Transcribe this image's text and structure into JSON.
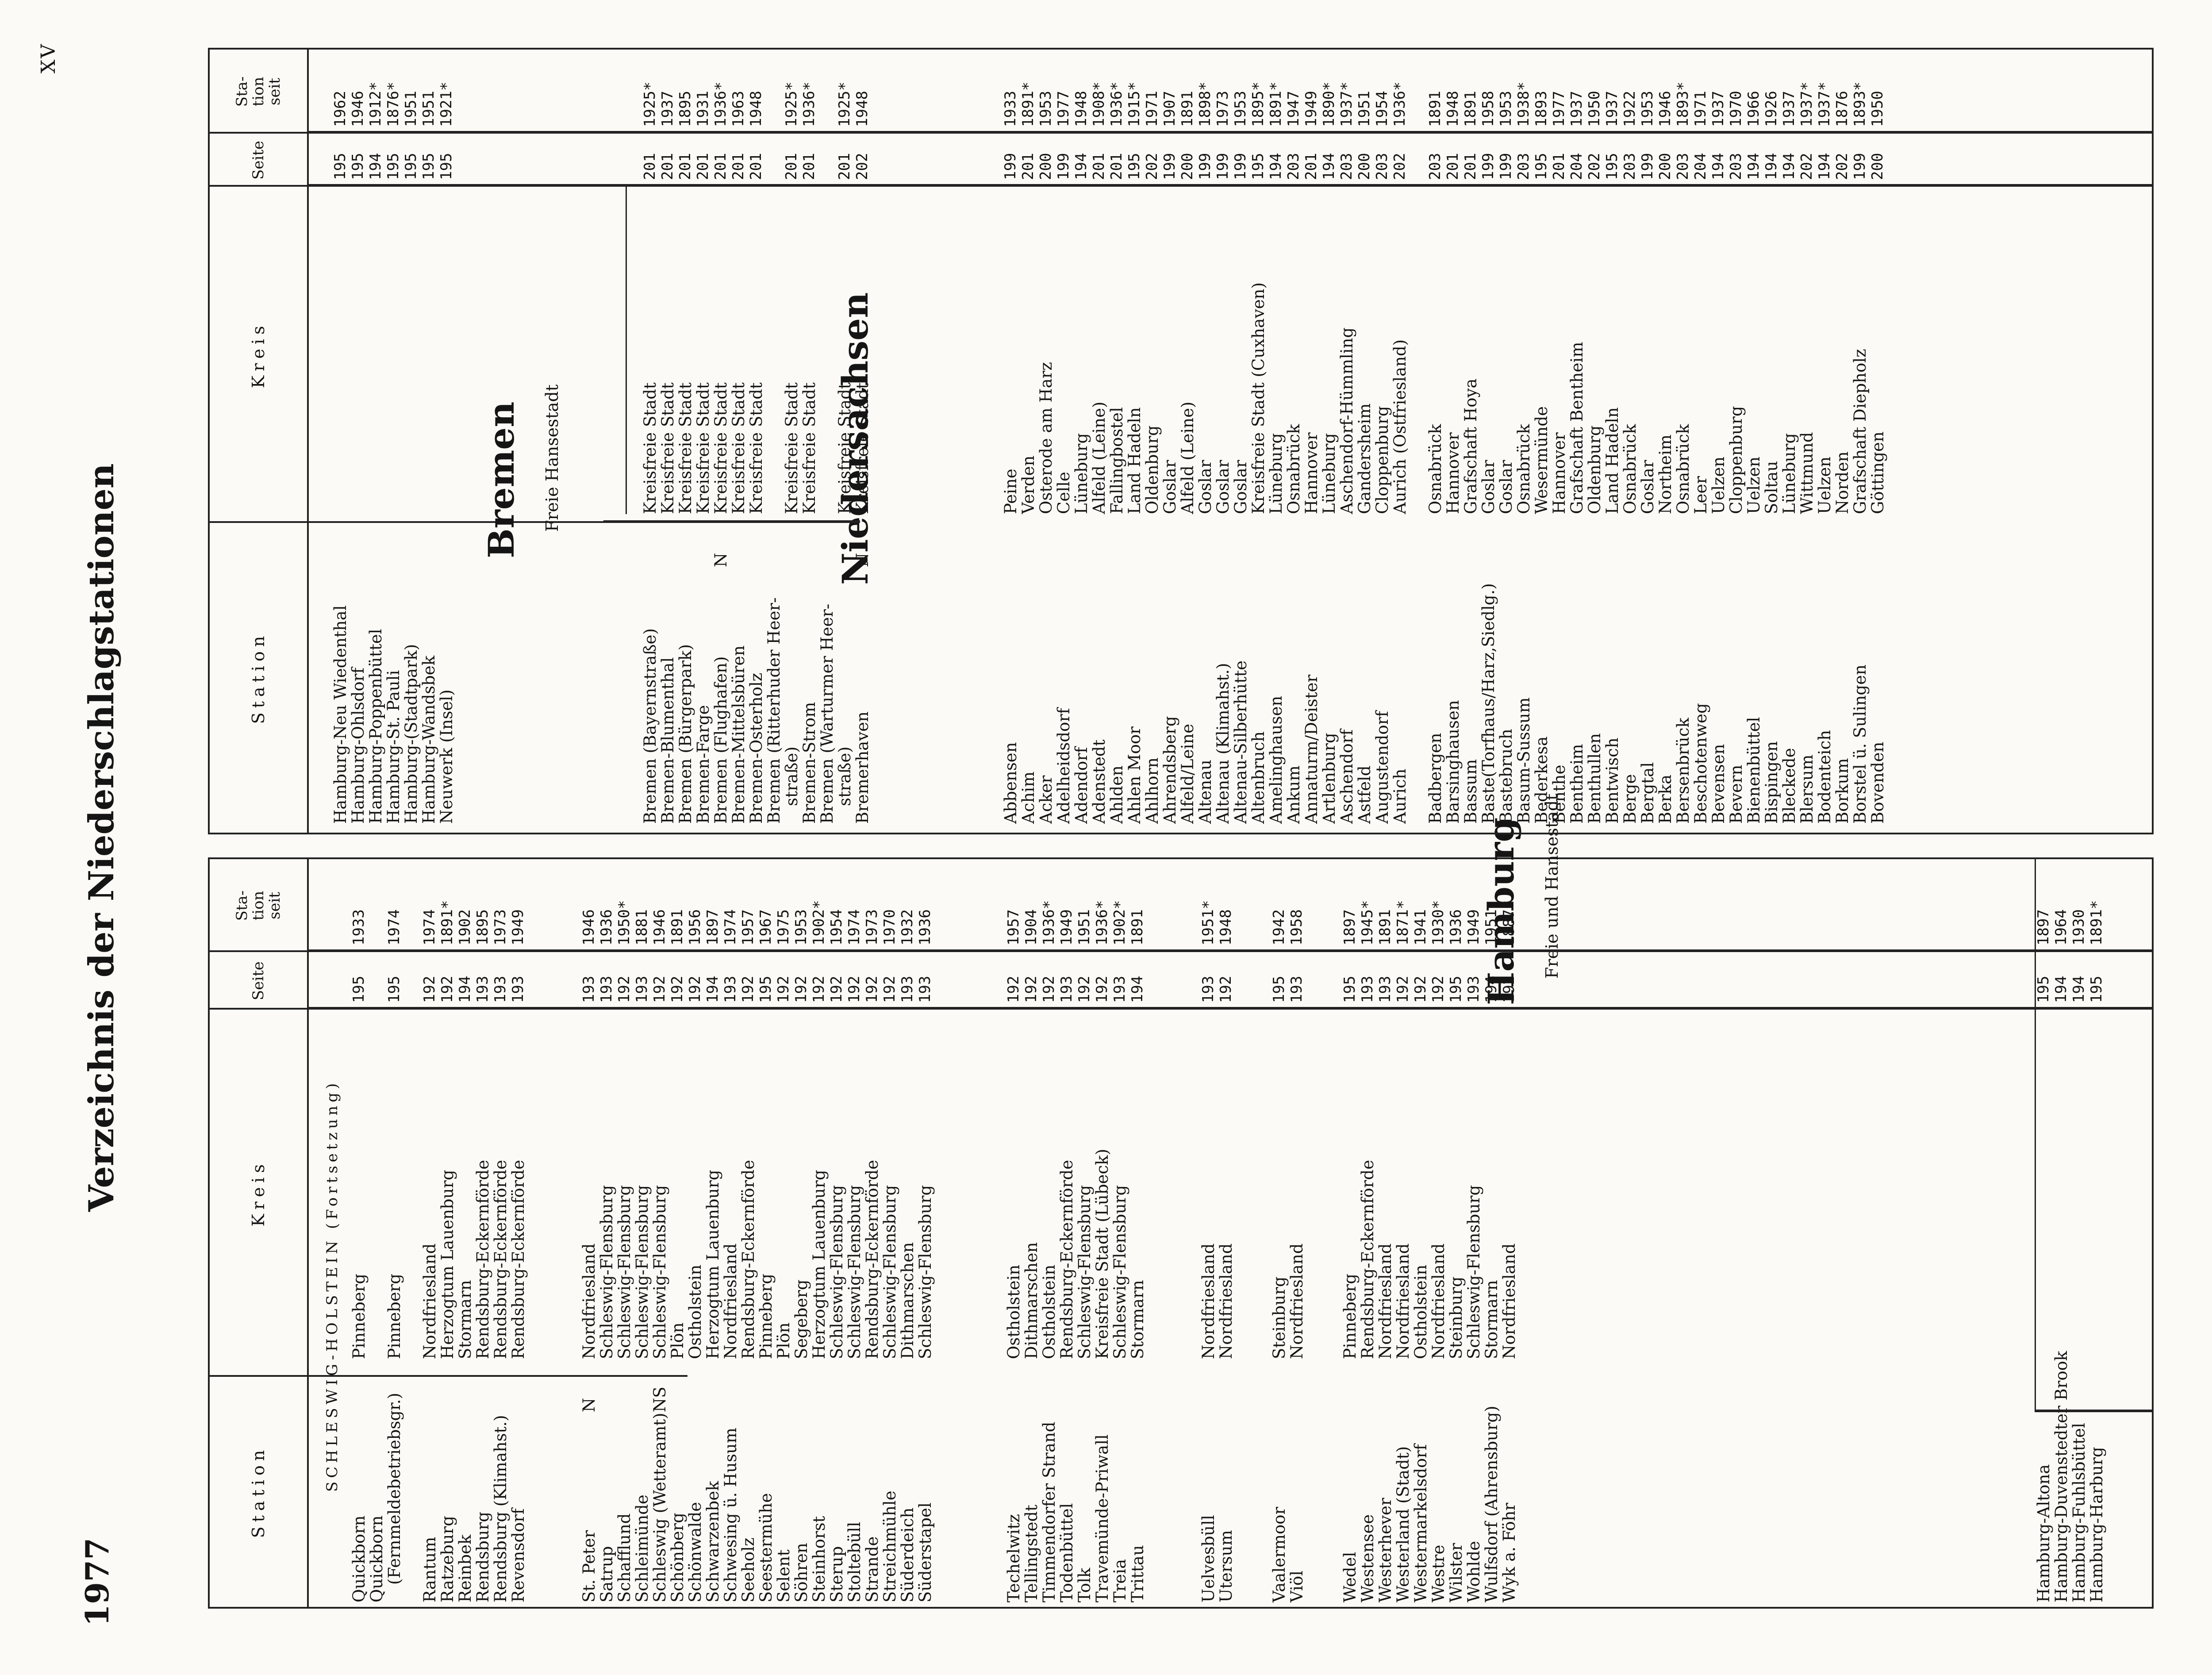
{
  "year": "1977",
  "page_number": "XV",
  "title": "Verzeichnis der Niederschlagstationen",
  "headers": {
    "station": "Station",
    "kreis": "Kreis",
    "seite": "Seite",
    "station_seit": [
      "Sta-",
      "tion",
      "seit"
    ]
  },
  "left": {
    "section": "SCHLESWIG-HOLSTEIN (Fortsetzung)",
    "rows1": [
      {
        "station": "Quickborn",
        "kreis": "Pinneberg",
        "seite": "195",
        "seit": "1933"
      },
      {
        "station": "Quickborn",
        "kreis": "",
        "seite": "",
        "seit": ""
      },
      {
        "station": "  (Fernmeldebetriebsgr.)",
        "kreis": "Pinneberg",
        "seite": "195",
        "seit": "1974"
      },
      {
        "station": "",
        "kreis": "",
        "seite": "",
        "seit": ""
      },
      {
        "station": "Rantum",
        "kreis": "Nordfriesland",
        "seite": "192",
        "seit": "1974"
      },
      {
        "station": "Ratzeburg",
        "kreis": "Herzogtum Lauenburg",
        "seite": "192",
        "seit": "1891*"
      },
      {
        "station": "Reinbek",
        "kreis": "Stormarn",
        "seite": "194",
        "seit": "1902"
      },
      {
        "station": "Rendsburg",
        "kreis": "Rendsburg-Eckernförde",
        "seite": "193",
        "seit": "1895"
      },
      {
        "station": "Rendsburg (Klimahst.)",
        "kreis": "Rendsburg-Eckernförde",
        "seite": "193",
        "seit": "1973"
      },
      {
        "station": "Revensdorf",
        "kreis": "Rendsburg-Eckernförde",
        "seite": "193",
        "seit": "1949"
      },
      {
        "station": "",
        "kreis": "",
        "seite": "",
        "seit": ""
      },
      {
        "station": "",
        "kreis": "",
        "seite": "",
        "seit": ""
      },
      {
        "station": "",
        "kreis": "",
        "seite": "",
        "seit": ""
      },
      {
        "station": "St. Peter",
        "mark": "N",
        "kreis": "Nordfriesland",
        "seite": "193",
        "seit": "1946"
      },
      {
        "station": "Satrup",
        "kreis": "Schleswig-Flensburg",
        "seite": "193",
        "seit": "1936"
      },
      {
        "station": "Schafflund",
        "kreis": "Schleswig-Flensburg",
        "seite": "192",
        "seit": "1950*"
      },
      {
        "station": "Schleimünde",
        "kreis": "Schleswig-Flensburg",
        "seite": "193",
        "seit": "1881"
      },
      {
        "station": "Schleswig (Wetteramt)",
        "mark": "NS",
        "kreis": "Schleswig-Flensburg",
        "seite": "192",
        "seit": "1946"
      },
      {
        "station": "Schönberg",
        "kreis": "Plön",
        "seite": "192",
        "seit": "1891"
      },
      {
        "station": "Schönwalde",
        "kreis": "Ostholstein",
        "seite": "192",
        "seit": "1956"
      },
      {
        "station": "Schwarzenbek",
        "kreis": "Herzogtum Lauenburg",
        "seite": "194",
        "seit": "1897"
      },
      {
        "station": "Schwesing ü. Husum",
        "kreis": "Nordfriesland",
        "seite": "193",
        "seit": "1974"
      },
      {
        "station": "Seeholz",
        "kreis": "Rendsburg-Eckernförde",
        "seite": "192",
        "seit": "1957"
      },
      {
        "station": "Seestermühe",
        "kreis": "Pinneberg",
        "seite": "195",
        "seit": "1967"
      },
      {
        "station": "Selent",
        "kreis": "Plön",
        "seite": "192",
        "seit": "1975"
      },
      {
        "station": "Söhren",
        "kreis": "Segeberg",
        "seite": "192",
        "seit": "1953"
      },
      {
        "station": "Steinhorst",
        "kreis": "Herzogtum Lauenburg",
        "seite": "192",
        "seit": "1902*"
      },
      {
        "station": "Sterup",
        "kreis": "Schleswig-Flensburg",
        "seite": "192",
        "seit": "1954"
      },
      {
        "station": "Stoltebüll",
        "kreis": "Schleswig-Flensburg",
        "seite": "192",
        "seit": "1974"
      },
      {
        "station": "Strande",
        "kreis": "Rendsburg-Eckernförde",
        "seite": "192",
        "seit": "1973"
      },
      {
        "station": "Streichmühle",
        "kreis": "Schleswig-Flensburg",
        "seite": "192",
        "seit": "1970"
      },
      {
        "station": "Süderdeich",
        "kreis": "Dithmarschen",
        "seite": "193",
        "seit": "1932"
      },
      {
        "station": "Süderstapel",
        "kreis": "Schleswig-Flensburg",
        "seite": "193",
        "seit": "1936"
      },
      {
        "station": "",
        "kreis": "",
        "seite": "",
        "seit": ""
      },
      {
        "station": "",
        "kreis": "",
        "seite": "",
        "seit": ""
      },
      {
        "station": "",
        "kreis": "",
        "seite": "",
        "seit": ""
      },
      {
        "station": "",
        "kreis": "",
        "seite": "",
        "seit": ""
      },
      {
        "station": "Techelwitz",
        "kreis": "Ostholstein",
        "seite": "192",
        "seit": "1957"
      },
      {
        "station": "Tellingstedt",
        "kreis": "Dithmarschen",
        "seite": "192",
        "seit": "1904"
      },
      {
        "station": "Timmendorfer Strand",
        "kreis": "Ostholstein",
        "seite": "192",
        "seit": "1936*"
      },
      {
        "station": "Todenbüttel",
        "kreis": "Rendsburg-Eckernförde",
        "seite": "193",
        "seit": "1949"
      },
      {
        "station": "Tolk",
        "kreis": "Schleswig-Flensburg",
        "seite": "192",
        "seit": "1951"
      },
      {
        "station": "Travemünde-Priwall",
        "kreis": "Kreisfreie Stadt (Lübeck)",
        "seite": "192",
        "seit": "1936*"
      },
      {
        "station": "Treia",
        "kreis": "Schleswig-Flensburg",
        "seite": "193",
        "seit": "1902*"
      },
      {
        "station": "Trittau",
        "kreis": "Stormarn",
        "seite": "194",
        "seit": "1891"
      },
      {
        "station": "",
        "kreis": "",
        "seite": "",
        "seit": ""
      },
      {
        "station": "",
        "kreis": "",
        "seite": "",
        "seit": ""
      },
      {
        "station": "",
        "kreis": "",
        "seite": "",
        "seit": ""
      },
      {
        "station": "Uelvesbüll",
        "kreis": "Nordfriesland",
        "seite": "193",
        "seit": "1951*"
      },
      {
        "station": "Utersum",
        "kreis": "Nordfriesland",
        "seite": "192",
        "seit": "1948"
      },
      {
        "station": "",
        "kreis": "",
        "seite": "",
        "seit": ""
      },
      {
        "station": "",
        "kreis": "",
        "seite": "",
        "seit": ""
      },
      {
        "station": "Vaalermoor",
        "kreis": "Steinburg",
        "seite": "195",
        "seit": "1942"
      },
      {
        "station": "Viöl",
        "kreis": "Nordfriesland",
        "seite": "193",
        "seit": "1958"
      },
      {
        "station": "",
        "kreis": "",
        "seite": "",
        "seit": ""
      },
      {
        "station": "",
        "kreis": "",
        "seite": "",
        "seit": ""
      },
      {
        "station": "Wedel",
        "kreis": "Pinneberg",
        "seite": "195",
        "seit": "1897"
      },
      {
        "station": "Westensee",
        "kreis": "Rendsburg-Eckernförde",
        "seite": "193",
        "seit": "1945*"
      },
      {
        "station": "Westerhever",
        "kreis": "Nordfriesland",
        "seite": "193",
        "seit": "1891"
      },
      {
        "station": "Westerland (Stadt)",
        "kreis": "Nordfriesland",
        "seite": "192",
        "seit": "1871*"
      },
      {
        "station": "Westermarkelsdorf",
        "kreis": "Ostholstein",
        "seite": "192",
        "seit": "1941"
      },
      {
        "station": "Westre",
        "kreis": "Nordfriesland",
        "seite": "192",
        "seit": "1930*"
      },
      {
        "station": "Wilster",
        "kreis": "Steinburg",
        "seite": "195",
        "seit": "1936"
      },
      {
        "station": "Wohlde",
        "kreis": "Schleswig-Flensburg",
        "seite": "193",
        "seit": "1949"
      },
      {
        "station": "Wulfsdorf (Ahrensburg)",
        "kreis": "Stormarn",
        "seite": "194",
        "seit": "1951"
      },
      {
        "station": "Wyk a. Föhr",
        "kreis": "Nordfriesland",
        "seite": "192",
        "seit": "1887*"
      }
    ],
    "hamburg": {
      "title": "Hamburg",
      "subtitle": "Freie und Hansestadt"
    },
    "rows2": [
      {
        "station": "Hamburg-Altona",
        "kreis": "",
        "seite": "195",
        "seit": "1897"
      },
      {
        "station": "Hamburg-Duvenstedter Brook",
        "kreis": "",
        "seite": "194",
        "seit": "1964"
      },
      {
        "station": "Hamburg-Fuhlsbüttel",
        "kreis": "",
        "seite": "194",
        "seit": "1930"
      },
      {
        "station": "Hamburg-Harburg",
        "kreis": "",
        "seite": "195",
        "seit": "1891*"
      }
    ]
  },
  "right": {
    "rows1": [
      {
        "station": "Hamburg-Neu Wiedenthal",
        "kreis": "",
        "seite": "195",
        "seit": "1962"
      },
      {
        "station": "Hamburg-Ohlsdorf",
        "kreis": "",
        "seite": "195",
        "seit": "1946"
      },
      {
        "station": "Hamburg-Poppenbüttel",
        "kreis": "",
        "seite": "194",
        "seit": "1912*"
      },
      {
        "station": "Hamburg-St. Pauli",
        "kreis": "",
        "seite": "195",
        "seit": "1876*"
      },
      {
        "station": "Hamburg-(Stadtpark)",
        "kreis": "",
        "seite": "195",
        "seit": "1951"
      },
      {
        "station": "Hamburg-Wandsbek",
        "kreis": "",
        "seite": "195",
        "seit": "1951"
      },
      {
        "station": "Neuwerk (Insel)",
        "kreis": "",
        "seite": "195",
        "seit": "1921*"
      }
    ],
    "bremen": {
      "title": "Bremen",
      "subtitle": "Freie Hansestadt"
    },
    "rows2": [
      {
        "station": "Bremen (Bayernstraße)",
        "kreis": "Kreisfreie Stadt",
        "seite": "201",
        "seit": "1925*"
      },
      {
        "station": "Bremen-Blumenthal",
        "kreis": "Kreisfreie Stadt",
        "seite": "201",
        "seit": "1937"
      },
      {
        "station": "Bremen (Bürgerpark)",
        "kreis": "Kreisfreie Stadt",
        "seite": "201",
        "seit": "1895"
      },
      {
        "station": "Bremen-Farge",
        "kreis": "Kreisfreie Stadt",
        "seite": "201",
        "seit": "1931"
      },
      {
        "station": "Bremen (Flughafen)",
        "mark": "N",
        "kreis": "Kreisfreie Stadt",
        "seite": "201",
        "seit": "1936*"
      },
      {
        "station": "Bremen-Mittelsbüren",
        "kreis": "Kreisfreie Stadt",
        "seite": "201",
        "seit": "1963"
      },
      {
        "station": "Bremen-Osterholz",
        "kreis": "Kreisfreie Stadt",
        "seite": "201",
        "seit": "1948"
      },
      {
        "station": "Bremen (Ritterhuder Heer-",
        "kreis": "",
        "seite": "",
        "seit": ""
      },
      {
        "station": "  straße)",
        "kreis": "Kreisfreie Stadt",
        "seite": "201",
        "seit": "1925*"
      },
      {
        "station": "Bremen-Strom",
        "kreis": "Kreisfreie Stadt",
        "seite": "201",
        "seit": "1936*"
      },
      {
        "station": "Bremen (Warturmer Heer-",
        "kreis": "",
        "seite": "",
        "seit": ""
      },
      {
        "station": "  straße)",
        "kreis": "Kreisfreie Stadt",
        "seite": "201",
        "seit": "1925*"
      },
      {
        "station": "Bremerhaven",
        "mark": "N",
        "kreis": "Kreisfreie Stadt",
        "seite": "202",
        "seit": "1948"
      }
    ],
    "niedersachsen": {
      "title": "Niedersachsen"
    },
    "rows3": [
      {
        "station": "Abbensen",
        "kreis": "Peine",
        "seite": "199",
        "seit": "1933"
      },
      {
        "station": "Achim",
        "kreis": "Verden",
        "seite": "201",
        "seit": "1891*"
      },
      {
        "station": "Acker",
        "kreis": "Osterode am Harz",
        "seite": "200",
        "seit": "1953"
      },
      {
        "station": "Adelheidsdorf",
        "kreis": "Celle",
        "seite": "199",
        "seit": "1977"
      },
      {
        "station": "Adendorf",
        "kreis": "Lüneburg",
        "seite": "194",
        "seit": "1948"
      },
      {
        "station": "Adenstedt",
        "kreis": "Alfeld (Leine)",
        "seite": "201",
        "seit": "1908*"
      },
      {
        "station": "Ahlden",
        "kreis": "Fallingbostel",
        "seite": "201",
        "seit": "1936*"
      },
      {
        "station": "Ahlen Moor",
        "kreis": "Land Hadeln",
        "seite": "195",
        "seit": "1915*"
      },
      {
        "station": "Ahlhorn",
        "kreis": "Oldenburg",
        "seite": "202",
        "seit": "1971"
      },
      {
        "station": "Ahrendsberg",
        "kreis": "Goslar",
        "seite": "199",
        "seit": "1907"
      },
      {
        "station": "Alfeld/Leine",
        "kreis": "Alfeld (Leine)",
        "seite": "200",
        "seit": "1891"
      },
      {
        "station": "Altenau",
        "kreis": "Goslar",
        "seite": "199",
        "seit": "1898*"
      },
      {
        "station": "Altenau (Klimahst.)",
        "kreis": "Goslar",
        "seite": "199",
        "seit": "1973"
      },
      {
        "station": "Altenau-Silberhütte",
        "kreis": "Goslar",
        "seite": "199",
        "seit": "1953"
      },
      {
        "station": "Altenbruch",
        "kreis": "Kreisfreie Stadt (Cuxhaven)",
        "seite": "195",
        "seit": "1895*"
      },
      {
        "station": "Amelinghausen",
        "kreis": "Lüneburg",
        "seite": "194",
        "seit": "1891*"
      },
      {
        "station": "Ankum",
        "kreis": "Osnabrück",
        "seite": "203",
        "seit": "1947"
      },
      {
        "station": "Annaturm/Deister",
        "kreis": "Hannover",
        "seite": "201",
        "seit": "1949"
      },
      {
        "station": "Artlenburg",
        "kreis": "Lüneburg",
        "seite": "194",
        "seit": "1890*"
      },
      {
        "station": "Aschendorf",
        "kreis": "Aschendorf-Hümmling",
        "seite": "203",
        "seit": "1937*"
      },
      {
        "station": "Astfeld",
        "kreis": "Gandersheim",
        "seite": "200",
        "seit": "1951"
      },
      {
        "station": "Augustendorf",
        "kreis": "Cloppenburg",
        "seite": "203",
        "seit": "1954"
      },
      {
        "station": "Aurich",
        "kreis": "Aurich (Ostfriesland)",
        "seite": "202",
        "seit": "1936*"
      },
      {
        "station": "",
        "kreis": "",
        "seite": "",
        "seit": ""
      },
      {
        "station": "Badbergen",
        "kreis": "Osnabrück",
        "seite": "203",
        "seit": "1891"
      },
      {
        "station": "Barsinghausen",
        "kreis": "Hannover",
        "seite": "201",
        "seit": "1948"
      },
      {
        "station": "Bassum",
        "kreis": "Grafschaft Hoya",
        "seite": "201",
        "seit": "1891"
      },
      {
        "station": "Baste(Torfhaus/Harz,Siedlg.)",
        "kreis": "Goslar",
        "seite": "199",
        "seit": "1958"
      },
      {
        "station": "Bastebruch",
        "kreis": "Goslar",
        "seite": "199",
        "seit": "1953"
      },
      {
        "station": "Basum-Sussum",
        "kreis": "Osnabrück",
        "seite": "203",
        "seit": "1938*"
      },
      {
        "station": "Bederkesa",
        "kreis": "Wesermünde",
        "seite": "195",
        "seit": "1893"
      },
      {
        "station": "Benthe",
        "kreis": "Hannover",
        "seite": "201",
        "seit": "1977"
      },
      {
        "station": "Bentheim",
        "kreis": "Grafschaft Bentheim",
        "seite": "204",
        "seit": "1937"
      },
      {
        "station": "Benthullen",
        "kreis": "Oldenburg",
        "seite": "202",
        "seit": "1950"
      },
      {
        "station": "Bentwisch",
        "kreis": "Land Hadeln",
        "seite": "195",
        "seit": "1937"
      },
      {
        "station": "Berge",
        "kreis": "Osnabrück",
        "seite": "203",
        "seit": "1922"
      },
      {
        "station": "Bergtal",
        "kreis": "Goslar",
        "seite": "199",
        "seit": "1953"
      },
      {
        "station": "Berka",
        "kreis": "Northeim",
        "seite": "200",
        "seit": "1946"
      },
      {
        "station": "Bersenbrück",
        "kreis": "Osnabrück",
        "seite": "203",
        "seit": "1893*"
      },
      {
        "station": "Beschotenweg",
        "kreis": "Leer",
        "seite": "204",
        "seit": "1971"
      },
      {
        "station": "Bevensen",
        "kreis": "Uelzen",
        "seite": "194",
        "seit": "1937"
      },
      {
        "station": "Bevern",
        "kreis": "Cloppenburg",
        "seite": "203",
        "seit": "1970"
      },
      {
        "station": "Bienenbüttel",
        "kreis": "Uelzen",
        "seite": "194",
        "seit": "1966"
      },
      {
        "station": "Bispingen",
        "kreis": "Soltau",
        "seite": "194",
        "seit": "1926"
      },
      {
        "station": "Bleckede",
        "kreis": "Lüneburg",
        "seite": "194",
        "seit": "1937"
      },
      {
        "station": "Blersum",
        "kreis": "Wittmund",
        "seite": "202",
        "seit": "1937*"
      },
      {
        "station": "Bodenteich",
        "kreis": "Uelzen",
        "seite": "194",
        "seit": "1937*"
      },
      {
        "station": "Borkum",
        "kreis": "Norden",
        "seite": "202",
        "seit": "1876"
      },
      {
        "station": "Borstel ü. Sulingen",
        "kreis": "Grafschaft Diepholz",
        "seite": "199",
        "seit": "1893*"
      },
      {
        "station": "Bovenden",
        "kreis": "Göttingen",
        "seite": "200",
        "seit": "1950"
      }
    ]
  }
}
